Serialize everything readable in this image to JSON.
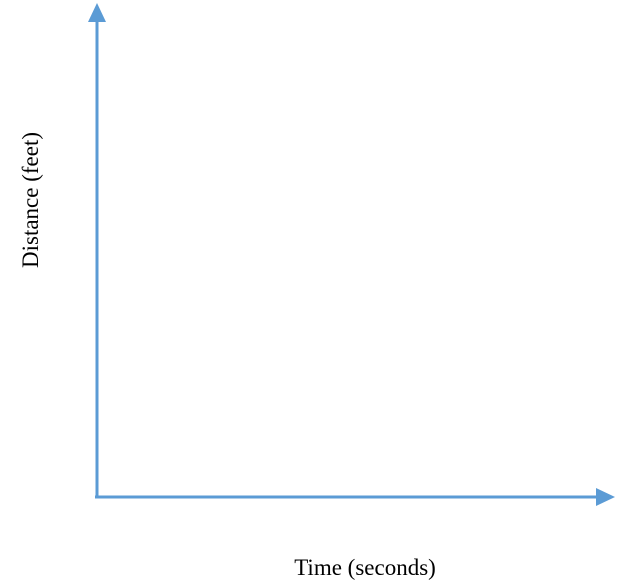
{
  "chart_data": {
    "type": "line",
    "xlabel": "Time (seconds)",
    "ylabel": "Distance (feet)",
    "series": [],
    "grid": false
  },
  "colors": {
    "axis": "#5b9bd5",
    "text": "#000000",
    "background": "#ffffff"
  }
}
